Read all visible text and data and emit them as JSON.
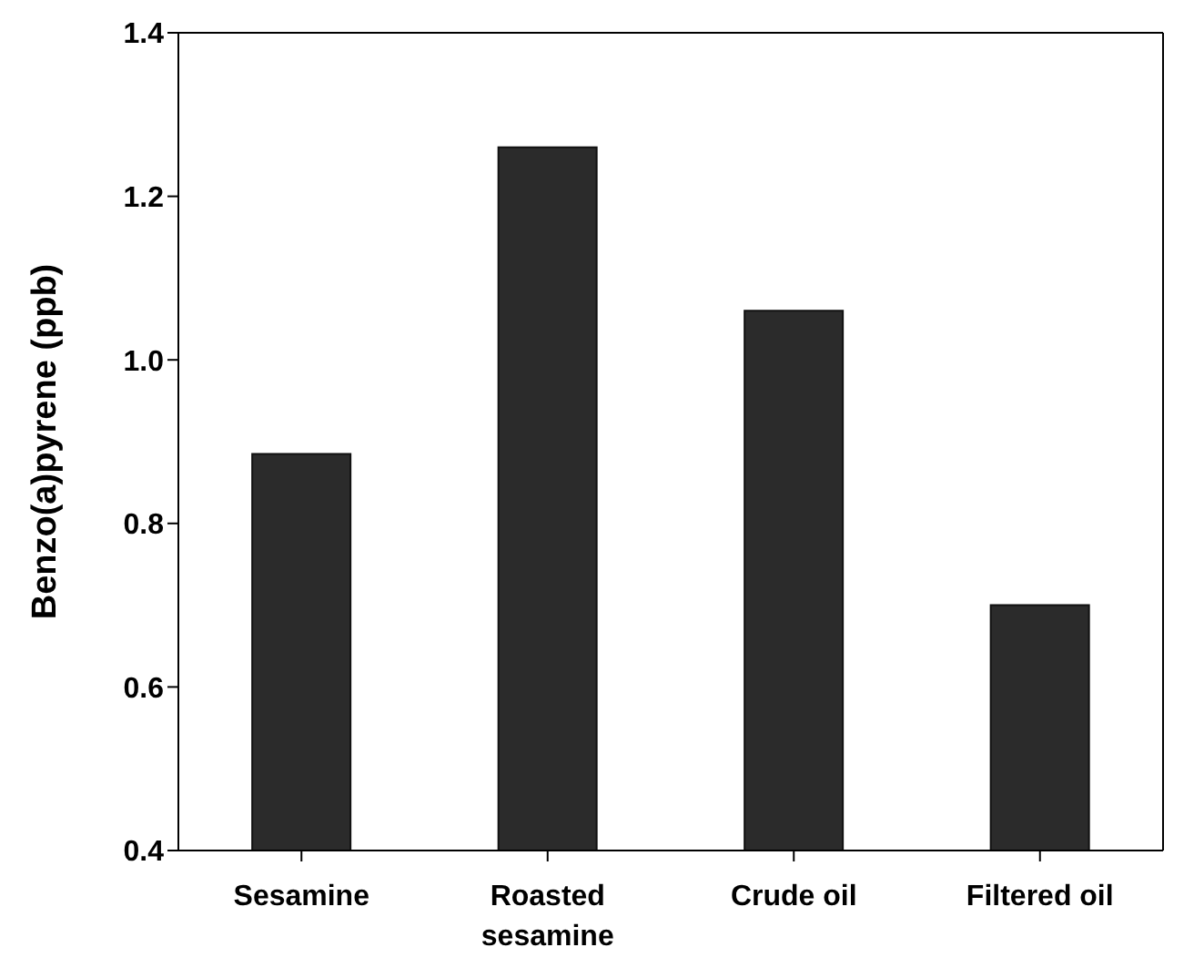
{
  "chart_data": {
    "type": "bar",
    "ylabel": "Benzo(a)pyrene (ppb)",
    "categories": [
      "Sesamine",
      "Roasted sesamine",
      "Crude oil",
      "Filtered oil"
    ],
    "values": [
      0.885,
      1.26,
      1.06,
      0.7
    ],
    "color": "#2b2b2b",
    "ylim": [
      0.4,
      1.4
    ],
    "yticks": [
      0.4,
      0.6,
      0.8,
      {
        "value": 1,
        "label": "1.0"
      },
      1.2,
      1.4
    ],
    "grid": false
  }
}
